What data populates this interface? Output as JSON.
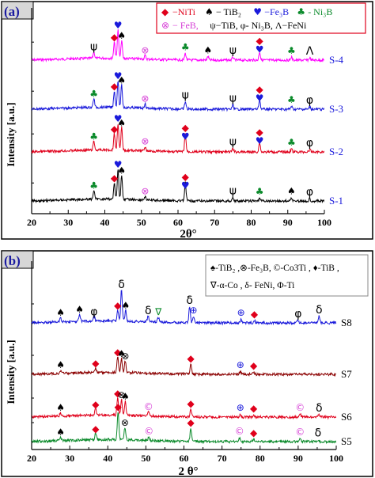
{
  "panels": [
    {
      "id": "a",
      "tag": "(a)",
      "xlabel": "2θ°",
      "ylabel": "Intensity [a.u.]",
      "xticks": [
        20,
        30,
        40,
        50,
        60,
        70,
        80,
        90,
        100
      ],
      "legend_line1": [
        {
          "sym": "diamond",
          "color": "#e0001b",
          "text": "−NiTi"
        },
        {
          "sym": "spade",
          "color": "#000000",
          "text": "− TiB₂"
        },
        {
          "sym": "heart",
          "color": "#1a1adb",
          "text": "−Fe₃B"
        },
        {
          "sym": "club",
          "color": "#0a8a2a",
          "text": "- Ni₃B"
        }
      ],
      "legend_line2": [
        {
          "sym": "otimes",
          "color": "#d63fd6",
          "text": "− FeB,"
        },
        {
          "sym": "text",
          "color": "#000000",
          "text": "ψ−TiB, φ- Ni₃B, Λ−FeNi"
        }
      ]
    },
    {
      "id": "b",
      "tag": "(b)",
      "xlabel": "2 θ°",
      "ylabel": "Intensity [a.u.]",
      "xticks": [
        20,
        30,
        40,
        50,
        60,
        70,
        80,
        90,
        100
      ],
      "legend_line1": "♠-TiB₂ ,⊗-Fe₃B, ©-Co3Ti , ♦-TiB ,",
      "legend_line2": "∇-α-Co , δ- FeNi, Φ-Ti"
    }
  ],
  "chart_data": [
    {
      "type": "line",
      "panel": "a",
      "xlabel": "2θ°",
      "ylabel": "Intensity [a.u.]",
      "xlim": [
        20,
        100
      ],
      "series": [
        {
          "name": "S-4",
          "color": "#ff00ff",
          "peaks": [
            {
              "x": 37,
              "h": 0.22,
              "sym": "psi"
            },
            {
              "x": 42.6,
              "h": 0.55,
              "sym": "diamond"
            },
            {
              "x": 43.6,
              "h": 0.95,
              "sym": "heart"
            },
            {
              "x": 44.6,
              "h": 0.6,
              "sym": "spade"
            },
            {
              "x": 51,
              "h": 0.12,
              "sym": "otimes"
            },
            {
              "x": 62,
              "h": 0.22,
              "sym": "club"
            },
            {
              "x": 68.2,
              "h": 0.12,
              "sym": "spade"
            },
            {
              "x": 75,
              "h": 0.1,
              "sym": "psi"
            },
            {
              "x": 82.3,
              "h": 0.14,
              "sym": "heart"
            },
            {
              "x": 82.3,
              "h": 0.14,
              "sym": "diamond"
            },
            {
              "x": 91,
              "h": 0.1,
              "sym": "club"
            },
            {
              "x": 96,
              "h": 0.08,
              "sym": "lambda"
            }
          ]
        },
        {
          "name": "S-3",
          "color": "#1a1adb",
          "peaks": [
            {
              "x": 37,
              "h": 0.3,
              "sym": "club"
            },
            {
              "x": 42.6,
              "h": 0.55,
              "sym": "diamond"
            },
            {
              "x": 43.6,
              "h": 0.9,
              "sym": "heart"
            },
            {
              "x": 44.6,
              "h": 0.75,
              "sym": "spade"
            },
            {
              "x": 51,
              "h": 0.14,
              "sym": "otimes"
            },
            {
              "x": 62,
              "h": 0.25,
              "sym": "psi"
            },
            {
              "x": 75,
              "h": 0.15,
              "sym": "psi"
            },
            {
              "x": 82.3,
              "h": 0.16,
              "sym": "heart"
            },
            {
              "x": 82.3,
              "h": 0.16,
              "sym": "diamond"
            },
            {
              "x": 91,
              "h": 0.1,
              "sym": "club"
            },
            {
              "x": 96,
              "h": 0.08,
              "sym": "phi"
            }
          ]
        },
        {
          "name": "S-2",
          "color": "#e0001b",
          "peaks": [
            {
              "x": 37,
              "h": 0.3,
              "sym": "club"
            },
            {
              "x": 42.6,
              "h": 0.55,
              "sym": "diamond"
            },
            {
              "x": 43.6,
              "h": 0.9,
              "sym": "heart"
            },
            {
              "x": 44.6,
              "h": 0.75,
              "sym": "spade"
            },
            {
              "x": 51,
              "h": 0.14,
              "sym": "otimes"
            },
            {
              "x": 62,
              "h": 0.3,
              "sym": "heart"
            },
            {
              "x": 62,
              "h": 0.3,
              "sym": "diamond"
            },
            {
              "x": 75,
              "h": 0.12,
              "sym": "psi"
            },
            {
              "x": 82.3,
              "h": 0.16,
              "sym": "heart"
            },
            {
              "x": 82.3,
              "h": 0.16,
              "sym": "diamond"
            },
            {
              "x": 91,
              "h": 0.1,
              "sym": "club"
            },
            {
              "x": 96,
              "h": 0.08,
              "sym": "phi"
            }
          ]
        },
        {
          "name": "S-1",
          "color": "#000000",
          "peaks": [
            {
              "x": 37,
              "h": 0.3,
              "sym": "club"
            },
            {
              "x": 42.6,
              "h": 0.55,
              "sym": "diamond"
            },
            {
              "x": 43.6,
              "h": 1.0,
              "sym": "heart"
            },
            {
              "x": 44.6,
              "h": 0.8,
              "sym": "spade"
            },
            {
              "x": 51,
              "h": 0.12,
              "sym": "otimes"
            },
            {
              "x": 62,
              "h": 0.3,
              "sym": "heart"
            },
            {
              "x": 62,
              "h": 0.3,
              "sym": "diamond"
            },
            {
              "x": 75,
              "h": 0.12,
              "sym": "psi"
            },
            {
              "x": 82.3,
              "h": 0.1,
              "sym": "club"
            },
            {
              "x": 91,
              "h": 0.12,
              "sym": "spade"
            },
            {
              "x": 96,
              "h": 0.08,
              "sym": "phi"
            }
          ]
        }
      ]
    },
    {
      "type": "line",
      "panel": "b",
      "xlabel": "2 θ°",
      "ylabel": "Intensity [a.u.]",
      "xlim": [
        20,
        100
      ],
      "series": [
        {
          "name": "S8",
          "color": "#1a1adb",
          "peaks": [
            {
              "x": 27.6,
              "h": 0.12,
              "sym": "spade"
            },
            {
              "x": 32.6,
              "h": 0.22,
              "sym": "spade"
            },
            {
              "x": 36.4,
              "h": 0.14,
              "sym": "phi"
            },
            {
              "x": 42.6,
              "h": 0.35,
              "sym": "diamond"
            },
            {
              "x": 43.6,
              "h": 1.0,
              "sym": "delta"
            },
            {
              "x": 44.7,
              "h": 0.35,
              "sym": "spade"
            },
            {
              "x": 50.6,
              "h": 0.18,
              "sym": "delta"
            },
            {
              "x": 53.3,
              "h": 0.15,
              "sym": "nabla"
            },
            {
              "x": 61.5,
              "h": 0.5,
              "sym": "delta"
            },
            {
              "x": 62.5,
              "h": 0.2,
              "sym": "oplus"
            },
            {
              "x": 75,
              "h": 0.12,
              "sym": "oplus"
            },
            {
              "x": 78.5,
              "h": 0.08,
              "sym": "diamond"
            },
            {
              "x": 90,
              "h": 0.08,
              "sym": "phi"
            },
            {
              "x": 95.5,
              "h": 0.2,
              "sym": "delta"
            }
          ]
        },
        {
          "name": "S7",
          "color": "#8b0000",
          "peaks": [
            {
              "x": 27.6,
              "h": 0.1,
              "sym": "spade"
            },
            {
              "x": 36.8,
              "h": 0.15,
              "sym": "diamond"
            },
            {
              "x": 42.6,
              "h": 0.5,
              "sym": "diamond"
            },
            {
              "x": 43.6,
              "h": 0.45,
              "sym": "spade"
            },
            {
              "x": 44.6,
              "h": 0.38,
              "sym": "otimes"
            },
            {
              "x": 61.8,
              "h": 0.3,
              "sym": "diamond"
            },
            {
              "x": 74.8,
              "h": 0.1,
              "sym": "oplus"
            },
            {
              "x": 78.3,
              "h": 0.08,
              "sym": "diamond"
            }
          ]
        },
        {
          "name": "S6",
          "color": "#e0001b",
          "peaks": [
            {
              "x": 27.6,
              "h": 0.1,
              "sym": "spade"
            },
            {
              "x": 36.8,
              "h": 0.2,
              "sym": "diamond"
            },
            {
              "x": 42.6,
              "h": 0.55,
              "sym": "diamond"
            },
            {
              "x": 43.6,
              "h": 0.5,
              "sym": "otimes"
            },
            {
              "x": 44.6,
              "h": 0.45,
              "sym": "spade"
            },
            {
              "x": 50.7,
              "h": 0.13,
              "sym": "copy"
            },
            {
              "x": 61.8,
              "h": 0.22,
              "sym": "diamond"
            },
            {
              "x": 74.8,
              "h": 0.1,
              "sym": "oplus"
            },
            {
              "x": 78.3,
              "h": 0.08,
              "sym": "diamond"
            },
            {
              "x": 90.5,
              "h": 0.1,
              "sym": "copy"
            },
            {
              "x": 95.5,
              "h": 0.08,
              "sym": "delta"
            }
          ]
        },
        {
          "name": "S5",
          "color": "#0a8a2a",
          "peaks": [
            {
              "x": 27.6,
              "h": 0.1,
              "sym": "spade"
            },
            {
              "x": 36.8,
              "h": 0.2,
              "sym": "diamond"
            },
            {
              "x": 42.7,
              "h": 0.9,
              "sym": "diamond"
            },
            {
              "x": 44.5,
              "h": 0.4,
              "sym": "otimes"
            },
            {
              "x": 50.8,
              "h": 0.12,
              "sym": "copy"
            },
            {
              "x": 61.8,
              "h": 0.4,
              "sym": "diamond"
            },
            {
              "x": 74.6,
              "h": 0.12,
              "sym": "copy"
            },
            {
              "x": 78.3,
              "h": 0.08,
              "sym": "diamond"
            },
            {
              "x": 90.5,
              "h": 0.1,
              "sym": "copy"
            },
            {
              "x": 95.2,
              "h": 0.06,
              "sym": "delta"
            }
          ]
        }
      ]
    }
  ]
}
